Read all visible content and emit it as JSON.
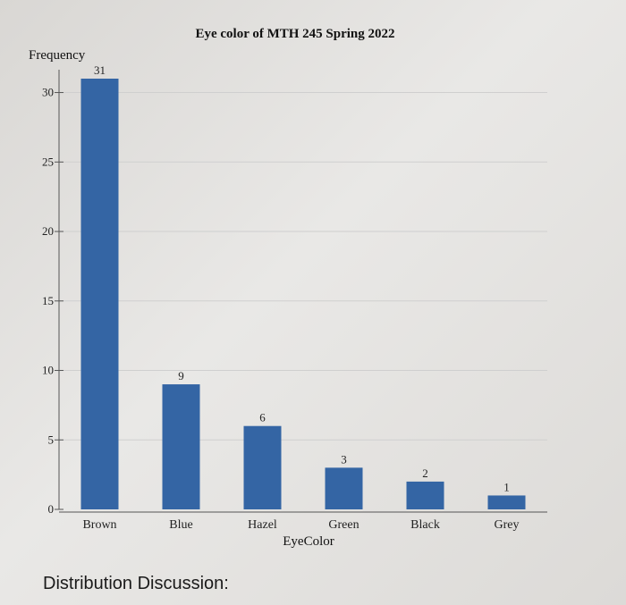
{
  "chart_data": {
    "type": "bar",
    "title": "Eye color of MTH 245 Spring 2022",
    "xlabel": "EyeColor",
    "ylabel": "Frequency",
    "categories": [
      "Brown",
      "Blue",
      "Hazel",
      "Green",
      "Black",
      "Grey"
    ],
    "values": [
      31,
      9,
      6,
      3,
      2,
      1
    ],
    "ylim": [
      0,
      31
    ],
    "yticks": [
      0,
      5,
      10,
      15,
      20,
      25,
      30
    ],
    "grid": true,
    "bar_color": "#3465a4"
  },
  "footer": {
    "discussion_label": "Distribution Discussion:"
  }
}
